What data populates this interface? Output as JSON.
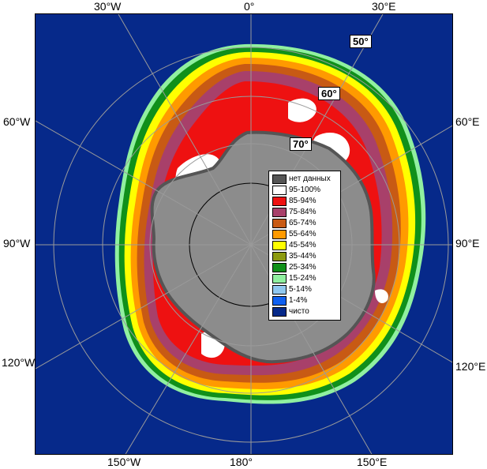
{
  "lon_labels": {
    "top_left": "30°W",
    "top_center": "0°",
    "top_right": "30°E",
    "left_upper": "60°W",
    "left_middle": "90°W",
    "left_lower": "120°W",
    "right_upper": "60°E",
    "right_middle": "90°E",
    "right_lower": "120°E",
    "bottom_left": "150°W",
    "bottom_center": "180°",
    "bottom_right": "150°E"
  },
  "lat_labels": {
    "lat50": "50°",
    "lat60": "60°",
    "lat70": "70°"
  },
  "legend": {
    "items": [
      {
        "label": "нет данных",
        "color": "#555555"
      },
      {
        "label": "95-100%",
        "color": "#ffffff"
      },
      {
        "label": "85-94%",
        "color": "#ee1111"
      },
      {
        "label": "75-84%",
        "color": "#a8406a"
      },
      {
        "label": "65-74%",
        "color": "#c85a14"
      },
      {
        "label": "55-64%",
        "color": "#ff9a00"
      },
      {
        "label": "45-54%",
        "color": "#ffff00"
      },
      {
        "label": "35-44%",
        "color": "#8c9a10"
      },
      {
        "label": "25-34%",
        "color": "#10901a"
      },
      {
        "label": "15-24%",
        "color": "#90f0a0"
      },
      {
        "label": "5-14%",
        "color": "#90c8f0"
      },
      {
        "label": "1-4%",
        "color": "#1060f0"
      },
      {
        "label": "чисто",
        "color": "#06298a"
      }
    ]
  },
  "colors": {
    "ocean": "#06298a",
    "land": "#8c8c8c",
    "no_data": "#555555",
    "grid": "#9a9a9a"
  }
}
